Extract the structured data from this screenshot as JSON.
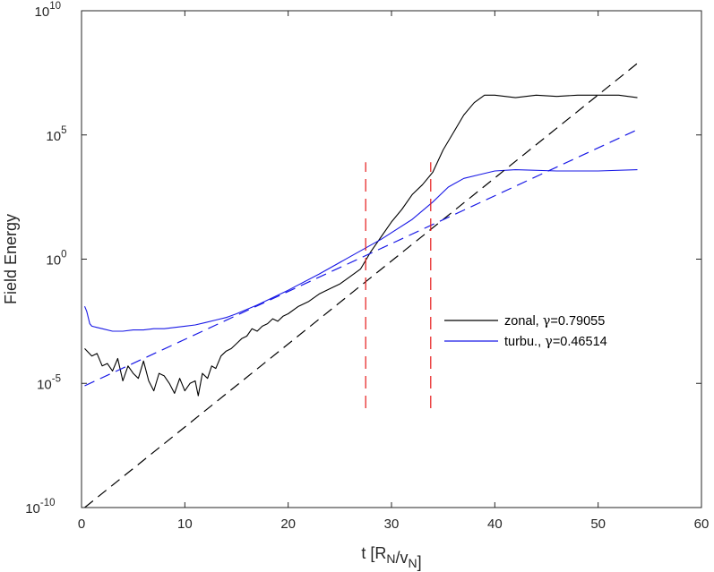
{
  "chart_data": {
    "type": "line",
    "xlabel": "t [R_N/v_N]",
    "ylabel": "Field Energy",
    "xlim": [
      0,
      60
    ],
    "ylim_log10": [
      -10,
      10
    ],
    "y_scale": "log",
    "x_ticks": [
      "0",
      "10",
      "20",
      "30",
      "40",
      "50",
      "60"
    ],
    "y_ticks": [
      {
        "base": "10",
        "exp": "-10",
        "value": -10
      },
      {
        "base": "10",
        "exp": "-5",
        "value": -5
      },
      {
        "base": "10",
        "exp": "0",
        "value": 0
      },
      {
        "base": "10",
        "exp": "5",
        "value": 5
      },
      {
        "base": "10",
        "exp": "10",
        "value": 10
      }
    ],
    "box": true,
    "legend_position": "right-middle",
    "series": [
      {
        "name": "zonal",
        "legend_prefix": "zonal, ",
        "gamma_symbol": "γ",
        "gamma_value": "=0.79055",
        "color": "#000000",
        "style": "solid",
        "x": [
          0.3,
          1.0,
          1.5,
          2.0,
          2.5,
          3.0,
          3.5,
          4.0,
          4.5,
          5.0,
          5.5,
          6.0,
          6.5,
          7.0,
          7.5,
          8.0,
          8.5,
          9.0,
          9.5,
          10.0,
          10.5,
          11.0,
          11.3,
          11.7,
          12.2,
          12.6,
          13.0,
          13.5,
          14.0,
          14.5,
          15.0,
          15.5,
          16.0,
          16.5,
          17.0,
          17.5,
          18.0,
          18.5,
          19.0,
          19.5,
          20.0,
          21.0,
          22.0,
          23.0,
          24.0,
          25.0,
          26.0,
          27.0,
          28.0,
          29.0,
          30.0,
          31.0,
          32.0,
          33.0,
          34.0,
          35.0,
          36.0,
          37.0,
          38.0,
          39.0,
          40.0,
          42.0,
          44.0,
          46.0,
          48.0,
          50.0,
          52.0,
          53.8
        ],
        "log10_y": [
          -3.6,
          -3.9,
          -3.8,
          -4.3,
          -4.2,
          -4.5,
          -4.0,
          -4.9,
          -4.3,
          -4.6,
          -4.8,
          -4.1,
          -4.9,
          -5.3,
          -4.6,
          -4.7,
          -5.0,
          -5.4,
          -4.8,
          -5.3,
          -5.0,
          -4.9,
          -5.5,
          -4.6,
          -4.8,
          -4.3,
          -4.4,
          -3.9,
          -3.7,
          -3.6,
          -3.4,
          -3.2,
          -3.1,
          -2.8,
          -2.9,
          -2.7,
          -2.6,
          -2.4,
          -2.5,
          -2.3,
          -2.2,
          -1.9,
          -1.7,
          -1.4,
          -1.2,
          -1.0,
          -0.7,
          -0.4,
          0.3,
          0.9,
          1.5,
          2.0,
          2.6,
          3.0,
          3.5,
          4.4,
          5.1,
          5.8,
          6.3,
          6.6,
          6.6,
          6.5,
          6.6,
          6.55,
          6.6,
          6.6,
          6.6,
          6.5
        ]
      },
      {
        "name": "turbu.",
        "legend_prefix": "turbu.,  ",
        "gamma_symbol": "γ",
        "gamma_value": "=0.46514",
        "color": "#1919e6",
        "style": "solid",
        "x": [
          0.3,
          0.5,
          0.8,
          1.0,
          1.5,
          2.0,
          3.0,
          4.0,
          5.0,
          6.0,
          7.0,
          8.0,
          9.0,
          10.0,
          11.0,
          12.0,
          13.0,
          14.0,
          15.0,
          17.0,
          20.0,
          23.0,
          26.0,
          29.0,
          32.0,
          34.0,
          35.5,
          37.0,
          38.5,
          40.0,
          42.0,
          46.0,
          50.0,
          53.8
        ],
        "log10_y": [
          -1.9,
          -2.1,
          -2.6,
          -2.7,
          -2.75,
          -2.8,
          -2.9,
          -2.9,
          -2.85,
          -2.85,
          -2.8,
          -2.8,
          -2.75,
          -2.7,
          -2.65,
          -2.55,
          -2.45,
          -2.35,
          -2.2,
          -1.85,
          -1.25,
          -0.6,
          0.1,
          0.8,
          1.6,
          2.3,
          2.9,
          3.25,
          3.4,
          3.55,
          3.6,
          3.55,
          3.55,
          3.6
        ]
      },
      {
        "name": "zonal fit",
        "color": "#000000",
        "style": "dashed",
        "x": [
          0.3,
          54.0
        ],
        "log10_y": [
          -10.0,
          7.95
        ]
      },
      {
        "name": "turbu. fit",
        "color": "#1919e6",
        "style": "dashed",
        "x": [
          0.3,
          54.0
        ],
        "log10_y": [
          -5.1,
          5.25
        ]
      },
      {
        "name": "phase marker 1",
        "color": "#e61919",
        "style": "dashed",
        "x": [
          27.5,
          27.5
        ],
        "log10_y": [
          -6.0,
          3.9
        ]
      },
      {
        "name": "phase marker 2",
        "color": "#e61919",
        "style": "dashed",
        "x": [
          33.8,
          33.8
        ],
        "log10_y": [
          -6.0,
          3.9
        ]
      }
    ]
  }
}
